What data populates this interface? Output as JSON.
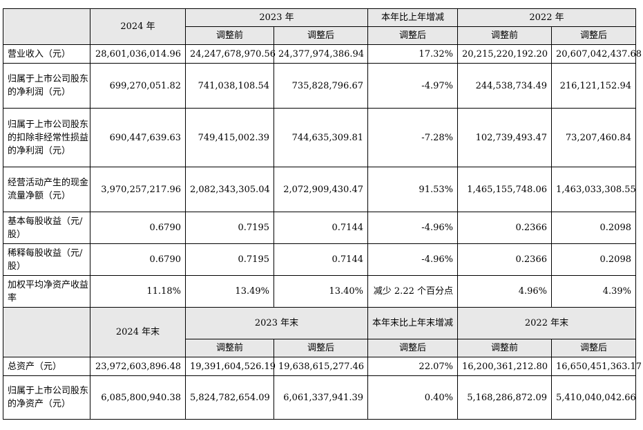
{
  "header1": {
    "year2024": "2024 年",
    "year2023": "2023 年",
    "change": "本年比上年增减",
    "year2022": "2022 年",
    "before": "调整前",
    "after": "调整后",
    "change_after": "调整后"
  },
  "rows": [
    {
      "label": "营业收入（元）",
      "v2024": "28,601,036,014.96",
      "v2023_before": "24,247,678,970.56",
      "v2023_after": "24,377,974,386.94",
      "change": "17.32%",
      "v2022_before": "20,215,220,192.20",
      "v2022_after": "20,607,042,437.68"
    },
    {
      "label": "归属于上市公司股东的净利润（元）",
      "v2024": "699,270,051.82",
      "v2023_before": "741,038,108.54",
      "v2023_after": "735,828,796.67",
      "change": "-4.97%",
      "v2022_before": "244,538,734.49",
      "v2022_after": "216,121,152.94"
    },
    {
      "label": "归属于上市公司股东的扣除非经常性损益的净利润（元）",
      "v2024": "690,447,639.63",
      "v2023_before": "749,415,002.39",
      "v2023_after": "744,635,309.81",
      "change": "-7.28%",
      "v2022_before": "102,739,493.47",
      "v2022_after": "73,207,460.84"
    },
    {
      "label": "经营活动产生的现金流量净额（元）",
      "v2024": "3,970,257,217.96",
      "v2023_before": "2,082,343,305.04",
      "v2023_after": "2,072,909,430.47",
      "change": "91.53%",
      "v2022_before": "1,465,155,748.06",
      "v2022_after": "1,463,033,308.55"
    },
    {
      "label": "基本每股收益（元/股）",
      "v2024": "0.6790",
      "v2023_before": "0.7195",
      "v2023_after": "0.7144",
      "change": "-4.96%",
      "v2022_before": "0.2366",
      "v2022_after": "0.2098"
    },
    {
      "label": "稀释每股收益（元/股）",
      "v2024": "0.6790",
      "v2023_before": "0.7195",
      "v2023_after": "0.7144",
      "change": "-4.96%",
      "v2022_before": "0.2366",
      "v2022_after": "0.2098"
    },
    {
      "label": "加权平均净资产收益率",
      "v2024": "11.18%",
      "v2023_before": "13.49%",
      "v2023_after": "13.40%",
      "change": "减少 2.22 个百分点",
      "v2022_before": "4.96%",
      "v2022_after": "4.39%"
    }
  ],
  "header2": {
    "year2024": "2024 年末",
    "year2023": "2023 年末",
    "change": "本年末比上年末增减",
    "year2022": "2022 年末",
    "before": "调整前",
    "after": "调整后",
    "change_after": "调整后"
  },
  "rows2": [
    {
      "label": "总资产（元）",
      "v2024": "23,972,603,896.48",
      "v2023_before": "19,391,604,526.19",
      "v2023_after": "19,638,615,277.46",
      "change": "22.07%",
      "v2022_before": "16,200,361,212.80",
      "v2022_after": "16,650,451,363.17"
    },
    {
      "label": "归属于上市公司股东的净资产（元）",
      "v2024": "6,085,800,940.38",
      "v2023_before": "5,824,782,654.09",
      "v2023_after": "6,061,337,941.39",
      "change": "0.40%",
      "v2022_before": "5,168,286,872.09",
      "v2022_after": "5,410,040,042.66"
    }
  ]
}
